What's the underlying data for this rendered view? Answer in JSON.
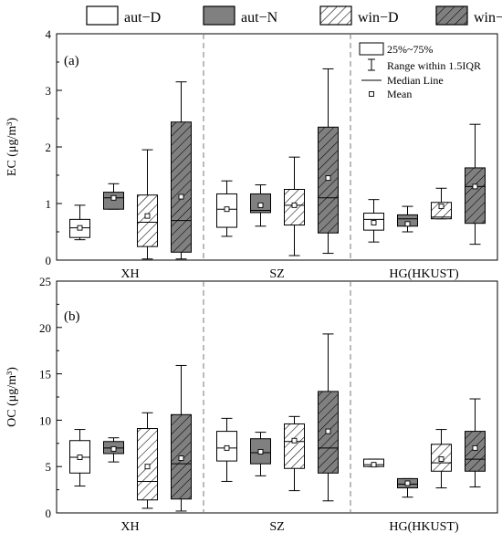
{
  "legend": {
    "items": [
      {
        "label": "aut−D",
        "fill": "#ffffff",
        "hatch": false
      },
      {
        "label": "aut−N",
        "fill": "#808080",
        "hatch": false
      },
      {
        "label": "win−D",
        "fill": "#ffffff",
        "hatch": true
      },
      {
        "label": "win−N",
        "fill": "#808080",
        "hatch": true
      }
    ]
  },
  "inset_legend": {
    "box_label": "25%~75%",
    "range_label": "Range within 1.5IQR",
    "median_label": "Median Line",
    "mean_label": "Mean"
  },
  "chart_data": [
    {
      "type": "box",
      "panel_label": "(a)",
      "ylabel": "EC (μg/m³)",
      "ylim": [
        0,
        4
      ],
      "yticks": [
        0,
        1,
        2,
        3,
        4
      ],
      "categories": [
        "XH",
        "SZ",
        "HG(HKUST)"
      ],
      "series_order": [
        "aut−D",
        "aut−N",
        "win−D",
        "win−N"
      ],
      "boxes": [
        {
          "site": "XH",
          "series": "aut−D",
          "whisker_low": 0.36,
          "q1": 0.4,
          "median": 0.57,
          "q3": 0.72,
          "whisker_high": 0.97,
          "mean": 0.57
        },
        {
          "site": "XH",
          "series": "aut−N",
          "whisker_low": 0.9,
          "q1": 0.9,
          "median": 1.1,
          "q3": 1.2,
          "whisker_high": 1.35,
          "mean": 1.1
        },
        {
          "site": "XH",
          "series": "win−D",
          "whisker_low": 0.02,
          "q1": 0.24,
          "median": 0.67,
          "q3": 1.15,
          "whisker_high": 1.95,
          "mean": 0.78
        },
        {
          "site": "XH",
          "series": "win−N",
          "whisker_low": 0.02,
          "q1": 0.14,
          "median": 0.7,
          "q3": 2.44,
          "whisker_high": 3.15,
          "mean": 1.12
        },
        {
          "site": "SZ",
          "series": "aut−D",
          "whisker_low": 0.42,
          "q1": 0.58,
          "median": 0.9,
          "q3": 1.17,
          "whisker_high": 1.4,
          "mean": 0.9
        },
        {
          "site": "SZ",
          "series": "aut−N",
          "whisker_low": 0.6,
          "q1": 0.84,
          "median": 0.88,
          "q3": 1.17,
          "whisker_high": 1.33,
          "mean": 0.97
        },
        {
          "site": "SZ",
          "series": "win−D",
          "whisker_low": 0.08,
          "q1": 0.62,
          "median": 0.97,
          "q3": 1.25,
          "whisker_high": 1.82,
          "mean": 0.97
        },
        {
          "site": "SZ",
          "series": "win−N",
          "whisker_low": 0.12,
          "q1": 0.48,
          "median": 1.1,
          "q3": 2.35,
          "whisker_high": 3.38,
          "mean": 1.45
        },
        {
          "site": "HG(HKUST)",
          "series": "aut−D",
          "whisker_low": 0.32,
          "q1": 0.53,
          "median": 0.72,
          "q3": 0.83,
          "whisker_high": 1.07,
          "mean": 0.66
        },
        {
          "site": "HG(HKUST)",
          "series": "aut−N",
          "whisker_low": 0.5,
          "q1": 0.6,
          "median": 0.73,
          "q3": 0.8,
          "whisker_high": 0.95,
          "mean": 0.64
        },
        {
          "site": "HG(HKUST)",
          "series": "win−D",
          "whisker_low": 0.73,
          "q1": 0.73,
          "median": 0.76,
          "q3": 1.02,
          "whisker_high": 1.27,
          "mean": 0.95
        },
        {
          "site": "HG(HKUST)",
          "series": "win−N",
          "whisker_low": 0.28,
          "q1": 0.65,
          "median": 1.3,
          "q3": 1.63,
          "whisker_high": 2.4,
          "mean": 1.3
        }
      ]
    },
    {
      "type": "box",
      "panel_label": "(b)",
      "ylabel": "OC (μg/m³)",
      "ylim": [
        0,
        25
      ],
      "yticks": [
        0,
        5,
        10,
        15,
        20,
        25
      ],
      "categories": [
        "XH",
        "SZ",
        "HG(HKUST)"
      ],
      "series_order": [
        "aut−D",
        "aut−N",
        "win−D",
        "win−N"
      ],
      "boxes": [
        {
          "site": "XH",
          "series": "aut−D",
          "whisker_low": 2.9,
          "q1": 4.3,
          "median": 6.0,
          "q3": 7.8,
          "whisker_high": 9.0,
          "mean": 6.0
        },
        {
          "site": "XH",
          "series": "aut−N",
          "whisker_low": 5.5,
          "q1": 6.4,
          "median": 7.0,
          "q3": 7.7,
          "whisker_high": 8.1,
          "mean": 6.9
        },
        {
          "site": "XH",
          "series": "win−D",
          "whisker_low": 0.5,
          "q1": 1.4,
          "median": 3.4,
          "q3": 9.1,
          "whisker_high": 10.8,
          "mean": 5.0
        },
        {
          "site": "XH",
          "series": "win−N",
          "whisker_low": 0.2,
          "q1": 1.5,
          "median": 5.3,
          "q3": 10.6,
          "whisker_high": 15.9,
          "mean": 5.9
        },
        {
          "site": "SZ",
          "series": "aut−D",
          "whisker_low": 3.4,
          "q1": 5.6,
          "median": 7.0,
          "q3": 8.8,
          "whisker_high": 10.2,
          "mean": 7.0
        },
        {
          "site": "SZ",
          "series": "aut−N",
          "whisker_low": 4.0,
          "q1": 5.3,
          "median": 6.5,
          "q3": 8.0,
          "whisker_high": 8.7,
          "mean": 6.6
        },
        {
          "site": "SZ",
          "series": "win−D",
          "whisker_low": 2.4,
          "q1": 4.8,
          "median": 7.7,
          "q3": 9.6,
          "whisker_high": 10.4,
          "mean": 7.8
        },
        {
          "site": "SZ",
          "series": "win−N",
          "whisker_low": 1.3,
          "q1": 4.3,
          "median": 7.0,
          "q3": 13.1,
          "whisker_high": 19.3,
          "mean": 8.8
        },
        {
          "site": "HG(HKUST)",
          "series": "aut−D",
          "whisker_low": 5.0,
          "q1": 5.0,
          "median": 5.2,
          "q3": 5.8,
          "whisker_high": 5.8,
          "mean": 5.2
        },
        {
          "site": "HG(HKUST)",
          "series": "aut−N",
          "whisker_low": 1.7,
          "q1": 2.7,
          "median": 3.1,
          "q3": 3.7,
          "whisker_high": 3.7,
          "mean": 3.2
        },
        {
          "site": "HG(HKUST)",
          "series": "win−D",
          "whisker_low": 2.7,
          "q1": 4.5,
          "median": 5.4,
          "q3": 7.4,
          "whisker_high": 9.0,
          "mean": 5.8
        },
        {
          "site": "HG(HKUST)",
          "series": "win−N",
          "whisker_low": 2.8,
          "q1": 4.5,
          "median": 5.8,
          "q3": 8.8,
          "whisker_high": 12.3,
          "mean": 7.0
        }
      ]
    }
  ]
}
